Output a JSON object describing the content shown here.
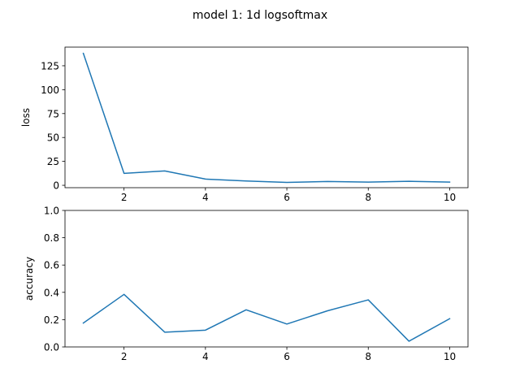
{
  "figure_title": "model 1: 1d logsoftmax",
  "colors": {
    "line": "#1f77b4",
    "axes": "#000000",
    "background": "#ffffff"
  },
  "chart_data": [
    {
      "type": "line",
      "title": "",
      "xlabel": "",
      "ylabel": "loss",
      "grid": false,
      "x": [
        1,
        2,
        3,
        4,
        5,
        6,
        7,
        8,
        9,
        10
      ],
      "series": [
        {
          "values": [
            138,
            12.5,
            15,
            6.5,
            4.5,
            3,
            4,
            3.3,
            4.2,
            3.3
          ]
        }
      ],
      "xlim": [
        0.55,
        10.45
      ],
      "ylim": [
        -2.5,
        144.5
      ],
      "xticks": [
        2,
        4,
        6,
        8,
        10
      ],
      "xtick_labels": [
        "2",
        "4",
        "6",
        "8",
        "10"
      ],
      "yticks": [
        0,
        25,
        50,
        75,
        100,
        125
      ],
      "ytick_labels": [
        "0",
        "25",
        "50",
        "75",
        "100",
        "125"
      ]
    },
    {
      "type": "line",
      "title": "",
      "xlabel": "",
      "ylabel": "accuracy",
      "grid": false,
      "x": [
        1,
        2,
        3,
        4,
        5,
        6,
        7,
        8,
        9,
        10
      ],
      "series": [
        {
          "values": [
            0.175,
            0.385,
            0.108,
            0.123,
            0.272,
            0.168,
            0.265,
            0.345,
            0.042,
            0.207
          ]
        }
      ],
      "xlim": [
        0.55,
        10.45
      ],
      "ylim": [
        0,
        1.0
      ],
      "xticks": [
        2,
        4,
        6,
        8,
        10
      ],
      "xtick_labels": [
        "2",
        "4",
        "6",
        "8",
        "10"
      ],
      "yticks": [
        0.0,
        0.2,
        0.4,
        0.6,
        0.8,
        1.0
      ],
      "ytick_labels": [
        "0.0",
        "0.2",
        "0.4",
        "0.6",
        "0.8",
        "1.0"
      ]
    }
  ]
}
